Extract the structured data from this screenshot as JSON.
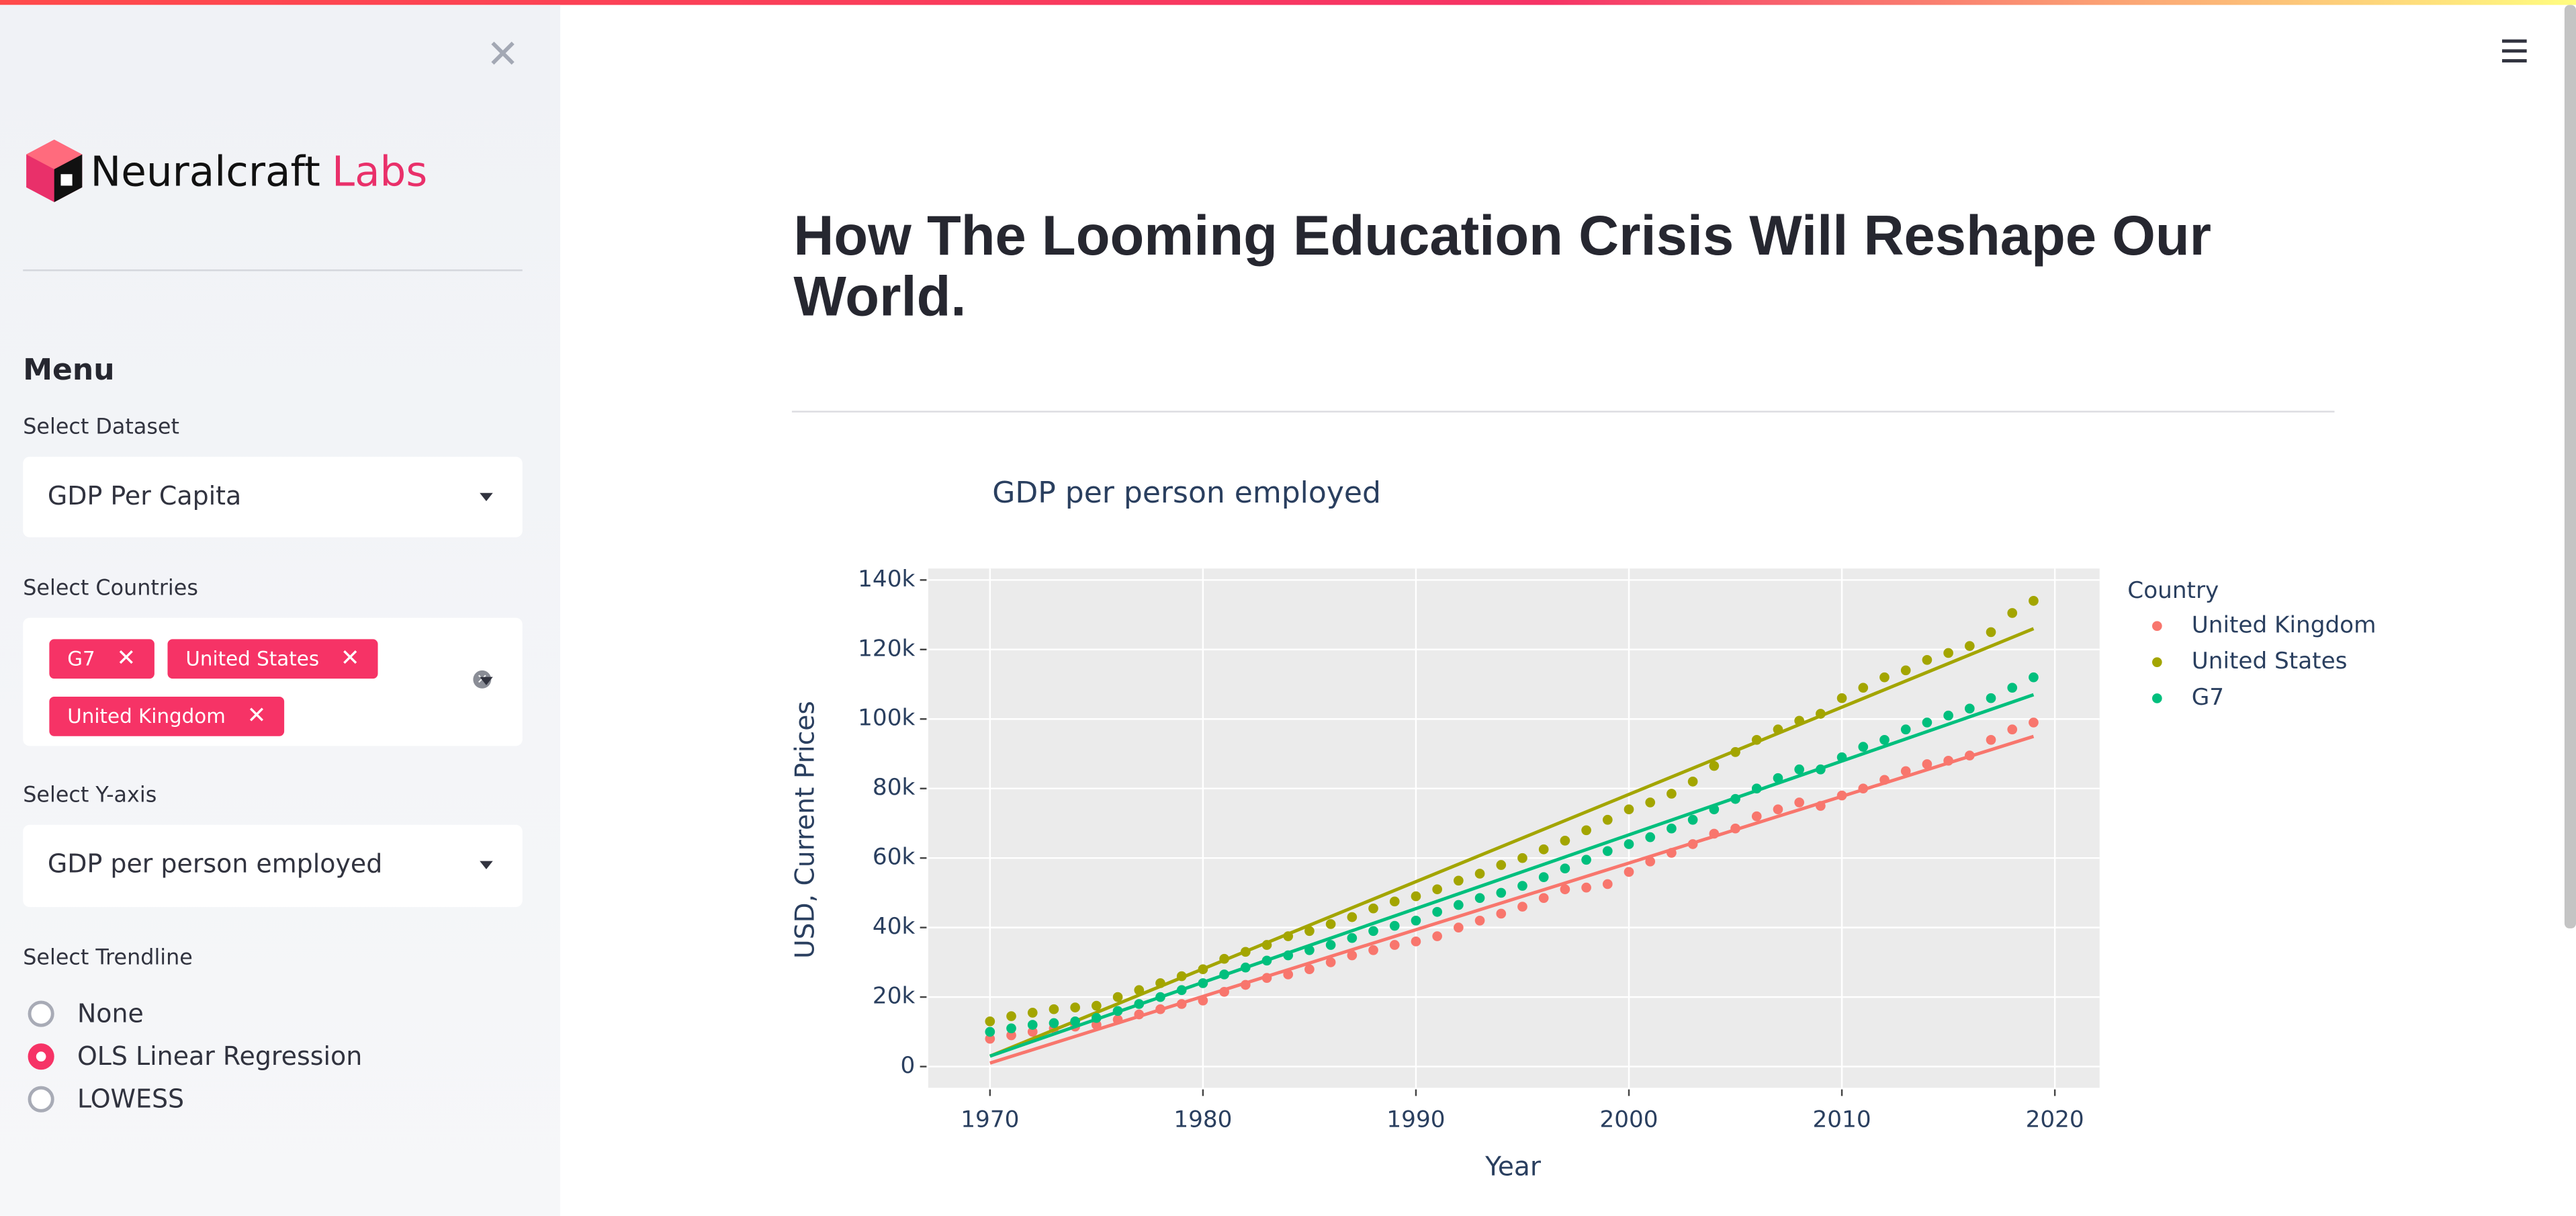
{
  "sidebar": {
    "brand": {
      "name": "Neuralcraft",
      "accent": "Labs"
    },
    "menu_title": "Menu",
    "dataset": {
      "label": "Select Dataset",
      "value": "GDP Per Capita"
    },
    "countries": {
      "label": "Select Countries",
      "tags": [
        "G7",
        "United States",
        "United Kingdom"
      ]
    },
    "y_axis": {
      "label": "Select Y-axis",
      "value": "GDP per person employed"
    },
    "trendline": {
      "label": "Select Trendline",
      "options": [
        "None",
        "OLS Linear Regression",
        "LOWESS"
      ],
      "selected": 1
    }
  },
  "header": {
    "title": "How The Looming Education Crisis Will Reshape Our World."
  },
  "chart_data": {
    "type": "scatter",
    "title": "GDP per person employed",
    "x_label": "Year",
    "y_label": "USD, Current Prices",
    "legend_title": "Country",
    "legend": "right",
    "grid": true,
    "x": [
      1970,
      1971,
      1972,
      1973,
      1974,
      1975,
      1976,
      1977,
      1978,
      1979,
      1980,
      1981,
      1982,
      1983,
      1984,
      1985,
      1986,
      1987,
      1988,
      1989,
      1990,
      1991,
      1992,
      1993,
      1994,
      1995,
      1996,
      1997,
      1998,
      1999,
      2000,
      2001,
      2002,
      2003,
      2004,
      2005,
      2006,
      2007,
      2008,
      2009,
      2010,
      2011,
      2012,
      2013,
      2014,
      2015,
      2016,
      2017,
      2018,
      2019
    ],
    "series": [
      {
        "name": "United Kingdom",
        "color": "#F8766D",
        "values": [
          8000,
          9000,
          10000,
          11000,
          11500,
          12000,
          13500,
          15000,
          16500,
          18000,
          19000,
          21500,
          23500,
          25500,
          26500,
          28000,
          30000,
          32000,
          33500,
          35000,
          36000,
          37500,
          40000,
          42000,
          44000,
          46000,
          48500,
          51000,
          51500,
          52500,
          56000,
          59000,
          61500,
          64000,
          67000,
          68500,
          72000,
          74000,
          76000,
          75000,
          78000,
          80000,
          82500,
          85000,
          87000,
          88000,
          89500,
          94000,
          97000,
          99000
        ],
        "trend_values": [
          1000,
          95000
        ]
      },
      {
        "name": "United States",
        "color": "#A3A500",
        "values": [
          13000,
          14500,
          15500,
          16500,
          17000,
          17500,
          20000,
          22000,
          24000,
          26000,
          28000,
          31000,
          33000,
          35000,
          37500,
          39000,
          41000,
          43000,
          45500,
          47500,
          49000,
          51000,
          53500,
          55500,
          58000,
          60000,
          62500,
          65000,
          68000,
          71000,
          74000,
          76000,
          78500,
          82000,
          86500,
          90500,
          94000,
          97000,
          99500,
          101500,
          106000,
          109000,
          112000,
          114000,
          117000,
          119000,
          121000,
          125000,
          130500,
          134000
        ],
        "trend_values": [
          3000,
          126000
        ]
      },
      {
        "name": "G7",
        "color": "#00BF7D",
        "values": [
          10000,
          11000,
          12000,
          12500,
          13000,
          14000,
          16000,
          18000,
          20000,
          22000,
          24000,
          26500,
          28500,
          30500,
          32000,
          33500,
          35000,
          37000,
          39000,
          40500,
          42000,
          44500,
          46500,
          48500,
          50000,
          52000,
          54500,
          57000,
          59500,
          62000,
          64000,
          66000,
          68500,
          71000,
          74000,
          77000,
          80000,
          83000,
          85500,
          85500,
          89000,
          92000,
          94000,
          97000,
          99000,
          101000,
          103000,
          106000,
          109000,
          112000
        ],
        "trend_values": [
          3000,
          107000
        ]
      }
    ],
    "xlim": [
      1967.1,
      2022.1
    ],
    "xticks": [
      1970,
      1980,
      1990,
      2000,
      2010,
      2020
    ],
    "ylim": [
      -6100,
      143300
    ],
    "yticks": [
      0,
      {
        "value": 20000,
        "label": "20k"
      },
      {
        "value": 40000,
        "label": "40k"
      },
      {
        "value": 60000,
        "label": "60k"
      },
      {
        "value": 80000,
        "label": "80k"
      },
      {
        "value": 100000,
        "label": "100k"
      },
      {
        "value": 120000,
        "label": "120k"
      },
      {
        "value": 140000,
        "label": "140k"
      }
    ]
  }
}
